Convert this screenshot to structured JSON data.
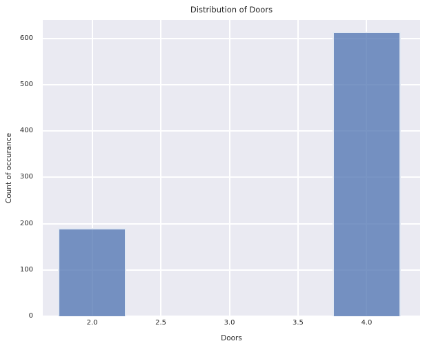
{
  "chart_data": {
    "type": "bar",
    "title": "Distribution of Doors",
    "xlabel": "Doors",
    "ylabel": "Count of occurance",
    "x": [
      2.0,
      4.0
    ],
    "values": [
      190,
      614
    ],
    "bar_width": 0.5,
    "xlim": [
      1.64,
      4.39
    ],
    "ylim": [
      0,
      640
    ],
    "x_ticks": [
      {
        "value": 2.0,
        "label": "2.0"
      },
      {
        "value": 2.5,
        "label": "2.5"
      },
      {
        "value": 3.0,
        "label": "3.0"
      },
      {
        "value": 3.5,
        "label": "3.5"
      },
      {
        "value": 4.0,
        "label": "4.0"
      }
    ],
    "y_ticks": [
      {
        "value": 0,
        "label": "0"
      },
      {
        "value": 100,
        "label": "100"
      },
      {
        "value": 200,
        "label": "200"
      },
      {
        "value": 300,
        "label": "300"
      },
      {
        "value": 400,
        "label": "400"
      },
      {
        "value": 500,
        "label": "500"
      },
      {
        "value": 600,
        "label": "600"
      }
    ],
    "grid": true,
    "legend": false,
    "style": {
      "figure_bg": "#ffffff",
      "axes_bg": "#eaeaf2",
      "grid_color": "#ffffff",
      "bar_color": "#4c72b0",
      "bar_alpha": 0.75,
      "bar_edge_color": "#ffffff",
      "text_color": "#262626"
    }
  }
}
